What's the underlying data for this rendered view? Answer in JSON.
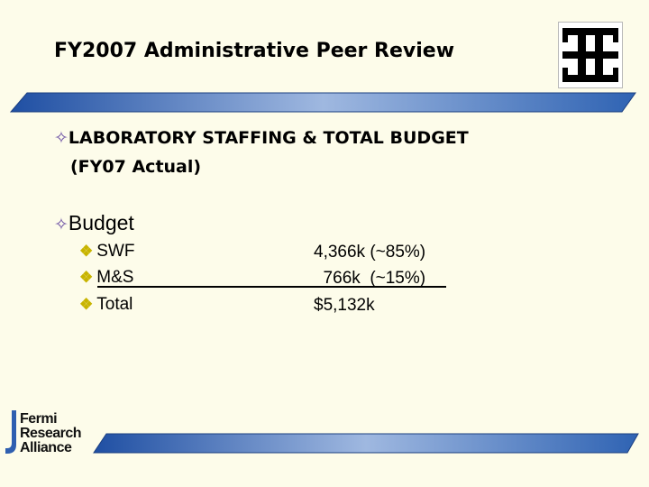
{
  "header": {
    "title": "FY2007 Administrative Peer Review"
  },
  "content": {
    "heading_bullet": "✧",
    "heading_line1": "LABORATORY STAFFING & TOTAL  BUDGET",
    "heading_line2": "(FY07 Actual)",
    "budget_bullet": "✧",
    "budget_label": "Budget",
    "sub_bullet": "❖",
    "rows": [
      {
        "label": "SWF",
        "value": "4,366k  (~85%)"
      },
      {
        "label": "M&S",
        "value": "  766k  (~15%) "
      },
      {
        "label": "Total",
        "value": "$5,132k"
      }
    ]
  },
  "footer_logo": {
    "lines": [
      "Fermi",
      "Research",
      "Alliance"
    ]
  },
  "colors": {
    "background": "#fdfcea",
    "bar_blue": "#2f63b3",
    "bullet_purple": "#6a4ea3",
    "check_gold": "#c8b400"
  }
}
